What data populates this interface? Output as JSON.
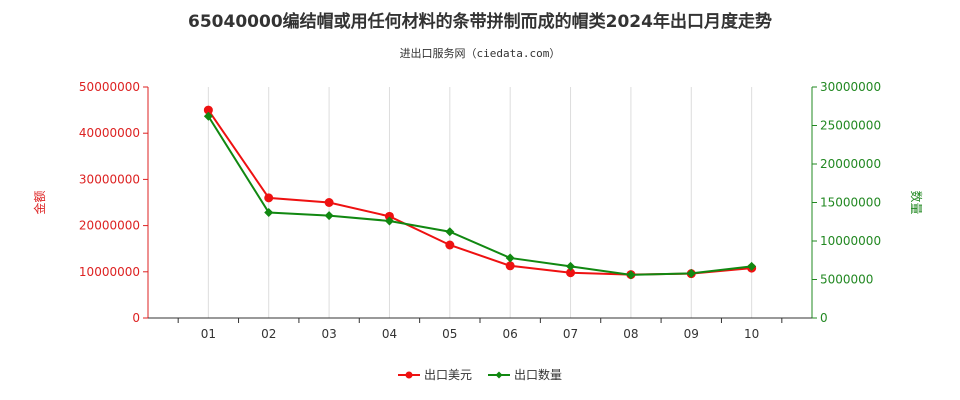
{
  "chart_data": {
    "type": "line",
    "title": "65040000编结帽或用任何材料的条带拼制而成的帽类2024年出口月度走势",
    "subtitle": "进出口服务网（ciedata.com）",
    "categories": [
      "01",
      "02",
      "03",
      "04",
      "05",
      "06",
      "07",
      "08",
      "09",
      "10"
    ],
    "y_left": {
      "label": "金额",
      "min": 0,
      "max": 50000000,
      "ticks": [
        0,
        10000000,
        20000000,
        30000000,
        40000000,
        50000000
      ],
      "tick_labels": [
        "0",
        "10000000",
        "20000000",
        "30000000",
        "40000000",
        "50000000"
      ],
      "color": "#dd2222"
    },
    "y_right": {
      "label": "数量",
      "min": 0,
      "max": 30000000,
      "ticks": [
        0,
        5000000,
        10000000,
        15000000,
        20000000,
        25000000,
        30000000
      ],
      "tick_labels": [
        "0",
        "5000000",
        "10000000",
        "15000000",
        "20000000",
        "25000000",
        "30000000"
      ],
      "color": "#228822"
    },
    "series": [
      {
        "name": "出口美元",
        "axis": "left",
        "color": "#ee1111",
        "values": [
          45000000,
          26000000,
          25000000,
          22000000,
          15800000,
          11300000,
          9800000,
          9400000,
          9600000,
          10800000
        ]
      },
      {
        "name": "出口数量",
        "axis": "right",
        "color": "#118811",
        "values": [
          26200000,
          13700000,
          13300000,
          12600000,
          11200000,
          7800000,
          6700000,
          5600000,
          5800000,
          6700000
        ]
      }
    ],
    "grid": {
      "x": true,
      "y": false
    },
    "legend": "bottom-center"
  }
}
